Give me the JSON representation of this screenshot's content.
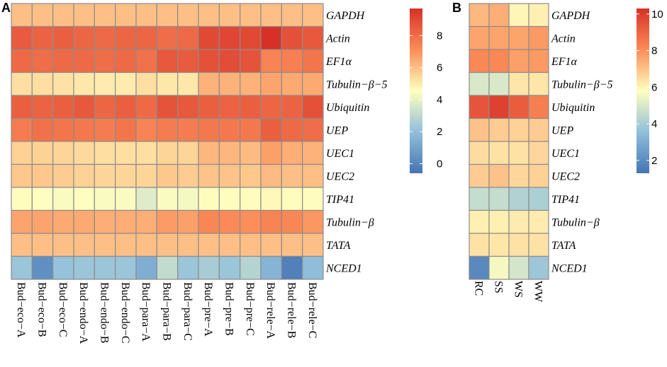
{
  "colors": {
    "cell_border": "#8c8c8c",
    "scale_low": "#4575b4",
    "scale_high": "#d73027"
  },
  "chart_data": [
    {
      "panel_label": "A",
      "type": "heatmap",
      "rows": [
        "GAPDH",
        "Actin",
        "EF1α",
        "Tubulin−β−5",
        "Ubiquitin",
        "UEP",
        "UEC1",
        "UEC2",
        "TIP41",
        "Tubulin−β",
        "TATA",
        "NCED1"
      ],
      "columns": [
        "Bud−eco−A",
        "Bud−eco−B",
        "Bud−eco−C",
        "Bud−endo−A",
        "Bud−endo−B",
        "Bud−endo−C",
        "Bud−para−A",
        "Bud−para−B",
        "Bud−para−C",
        "Bud−pre−A",
        "Bud−pre−B",
        "Bud−pre−C",
        "Bud−rele−A",
        "Bud−rele−B",
        "Bud−rele−C"
      ],
      "values": [
        [
          6,
          6,
          6,
          6,
          6,
          6,
          6,
          6,
          6,
          6,
          6,
          6,
          6,
          6,
          6
        ],
        [
          8.5,
          8.3,
          8.4,
          8.2,
          8.1,
          8.2,
          8.2,
          8,
          8.1,
          9,
          9.1,
          9,
          9.7,
          8.8,
          8.6
        ],
        [
          8.1,
          8,
          8.1,
          8.1,
          8,
          8.1,
          7.9,
          8.6,
          8.5,
          8.8,
          8.9,
          8.7,
          7.4,
          7.5,
          7.8
        ],
        [
          5.3,
          5.3,
          5.2,
          5.1,
          5,
          5,
          5.3,
          5.1,
          5.1,
          6.3,
          6.3,
          6.3,
          6.6,
          6.5,
          6.5
        ],
        [
          8.4,
          8.3,
          8.4,
          8.6,
          8.2,
          8.4,
          8.1,
          8.7,
          8.6,
          8.4,
          8.3,
          8.4,
          8.2,
          8.3,
          8.8
        ],
        [
          7.6,
          7.9,
          7.8,
          7.7,
          7.6,
          7.8,
          7.4,
          7.6,
          7.6,
          7.7,
          7.7,
          7.7,
          8.4,
          8.1,
          8
        ],
        [
          5.6,
          5.6,
          5.5,
          5.4,
          5.3,
          5.3,
          5.3,
          5.5,
          5.5,
          6.2,
          6.2,
          6.1,
          6.7,
          6.4,
          6.3
        ],
        [
          5.8,
          5.8,
          5.7,
          5.6,
          5.5,
          5.5,
          5.5,
          5.8,
          5.7,
          5.9,
          5.9,
          5.8,
          6.1,
          6,
          6
        ],
        [
          4.6,
          4.5,
          4.4,
          4.5,
          4.4,
          4.4,
          3.8,
          4.4,
          4.3,
          4.6,
          4.6,
          4.6,
          4.7,
          4.6,
          4.6
        ],
        [
          6.6,
          6.6,
          6.5,
          6.5,
          6.4,
          6.4,
          6.4,
          6.8,
          6.7,
          7.3,
          7.2,
          7.1,
          7.4,
          7.3,
          6.9
        ],
        [
          6,
          6,
          6,
          6,
          6,
          6,
          6,
          6,
          6,
          6,
          6,
          6,
          6,
          6,
          6
        ],
        [
          2.2,
          0.3,
          2.1,
          2.2,
          2.2,
          2.2,
          1.4,
          3.1,
          2.2,
          2.5,
          2.2,
          2.8,
          1.6,
          -0.2,
          1.9
        ]
      ],
      "legend_ticks": [
        0,
        2,
        4,
        6,
        8
      ],
      "scale_range": [
        -0.6,
        9.7
      ]
    },
    {
      "panel_label": "B",
      "type": "heatmap",
      "rows": [
        "GAPDH",
        "Actin",
        "EF1α",
        "Tubulin−β−5",
        "Ubiquitin",
        "UEP",
        "UEC1",
        "UEC2",
        "TIP41",
        "Tubulin−β",
        "TATA",
        "NCED1"
      ],
      "columns": [
        "RC",
        "SS",
        "WS",
        "WW"
      ],
      "values": [
        [
          7.2,
          7.4,
          6,
          6.1
        ],
        [
          7.6,
          7.6,
          7.6,
          7.8
        ],
        [
          8.2,
          8.2,
          7.7,
          7.8
        ],
        [
          5,
          5,
          6.3,
          6.3
        ],
        [
          9.4,
          9.9,
          9.2,
          8.4
        ],
        [
          7,
          6.8,
          6.7,
          6.8
        ],
        [
          6.5,
          6.4,
          6.4,
          6.6
        ],
        [
          6.8,
          7,
          6.6,
          6.7
        ],
        [
          4.6,
          4.6,
          4.2,
          4.1
        ],
        [
          6.1,
          6.1,
          6.2,
          6.2
        ],
        [
          6.4,
          6.3,
          6.4,
          6.4
        ],
        [
          1.9,
          5.6,
          4.9,
          3.8
        ]
      ],
      "legend_ticks": [
        2,
        4,
        6,
        8,
        10
      ],
      "scale_range": [
        1.3,
        10.3
      ]
    }
  ]
}
